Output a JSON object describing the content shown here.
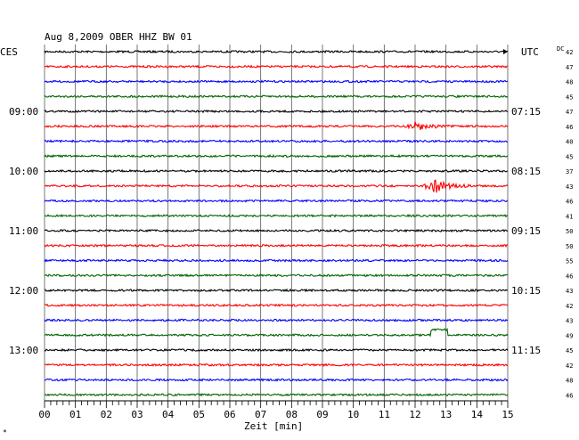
{
  "chart_data": {
    "type": "line",
    "title": "Aug 8,2009   OBER HHZ BW 01",
    "left_zone_label": "CES",
    "right_zone_label": "UTC",
    "dc_label": "DC",
    "xlabel": "Zeit [min]",
    "xlim": [
      0,
      15
    ],
    "x_tick_labels": [
      "00",
      "01",
      "02",
      "03",
      "04",
      "05",
      "06",
      "07",
      "08",
      "09",
      "10",
      "11",
      "12",
      "13",
      "14",
      "15"
    ],
    "left_hour_labels": [
      {
        "trace": 4,
        "label": "09:00"
      },
      {
        "trace": 8,
        "label": "10:00"
      },
      {
        "trace": 12,
        "label": "11:00"
      },
      {
        "trace": 16,
        "label": "12:00"
      },
      {
        "trace": 20,
        "label": "13:00"
      }
    ],
    "right_hour_labels": [
      {
        "trace": 4,
        "label": "07:15"
      },
      {
        "trace": 8,
        "label": "08:15"
      },
      {
        "trace": 12,
        "label": "09:15"
      },
      {
        "trace": 16,
        "label": "10:15"
      },
      {
        "trace": 20,
        "label": "11:15"
      }
    ],
    "trace_colors": [
      "#000000",
      "#ff0000",
      "#0000ff",
      "#006400"
    ],
    "dc_values": [
      "42",
      "47",
      "48",
      "45",
      "47",
      "46",
      "40",
      "45",
      "37",
      "43",
      "46",
      "41",
      "50",
      "50",
      "55",
      "46",
      "43",
      "42",
      "43",
      "49",
      "45",
      "42",
      "48",
      "46"
    ],
    "events": [
      {
        "trace": 5,
        "minute": 12.0,
        "amplitude": 5
      },
      {
        "trace": 9,
        "minute": 12.6,
        "amplitude": 9
      },
      {
        "trace": 19,
        "minute": 12.5,
        "type": "step"
      }
    ],
    "grid": true,
    "footer_mark": "*"
  }
}
